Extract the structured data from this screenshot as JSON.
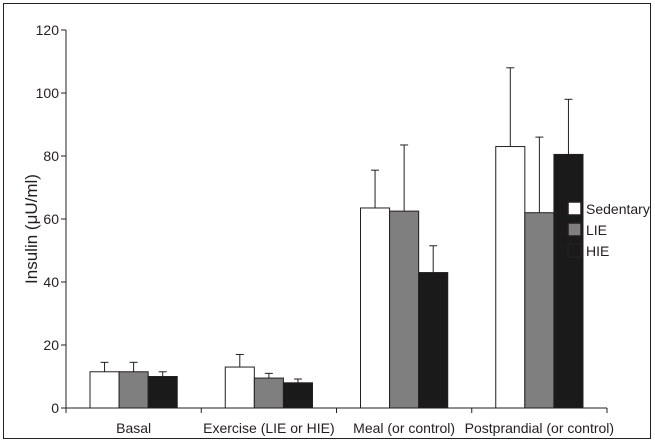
{
  "chart_data": {
    "type": "bar",
    "title": "",
    "xlabel": "",
    "ylabel": "Insulin (μU/ml)",
    "ylim": [
      0,
      120
    ],
    "yticks": [
      0,
      20,
      40,
      60,
      80,
      100,
      120
    ],
    "grid": false,
    "legend_position": "right",
    "categories": [
      "Basal",
      "Exercise (LIE or HIE)",
      "Meal (or control)",
      "Postprandial (or control)"
    ],
    "series": [
      {
        "name": "Sedentary",
        "color": "#ffffff",
        "values": [
          11.5,
          13,
          63.5,
          83
        ],
        "error": [
          3,
          4,
          12,
          25
        ]
      },
      {
        "name": "LIE",
        "color": "#7f7f7f",
        "values": [
          11.5,
          9.5,
          62.5,
          62
        ],
        "error": [
          3,
          1.5,
          21,
          24
        ]
      },
      {
        "name": "HIE",
        "color": "#1a1a1a",
        "values": [
          10,
          8,
          43,
          80.5
        ],
        "error": [
          1.5,
          1.2,
          8.5,
          17.5
        ]
      }
    ]
  }
}
